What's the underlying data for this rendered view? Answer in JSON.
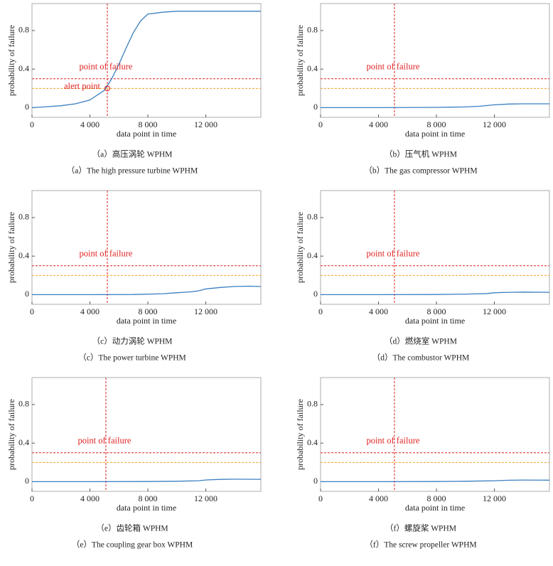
{
  "chart_data": [
    {
      "type": "line",
      "x_label": "data point in time",
      "y_label": "probability of failure",
      "caption_zh": "（a）高压涡轮 WPHM",
      "caption_en": "（a）The high pressure turbine WPHM",
      "x": [
        0,
        1000,
        2000,
        3000,
        4000,
        5000,
        5500,
        6000,
        6500,
        7000,
        7500,
        8000,
        9000,
        10000,
        12000,
        14000,
        15800
      ],
      "values": [
        0,
        0.01,
        0.02,
        0.04,
        0.08,
        0.18,
        0.3,
        0.45,
        0.62,
        0.78,
        0.9,
        0.97,
        0.99,
        1.0,
        1.0,
        1.0,
        1.0
      ],
      "color": "#3a7fc1",
      "failure_threshold": 0.3,
      "alert_threshold": 0.2,
      "failure_point": 5200,
      "failure_label": "point of failure",
      "alert_label": "alert point",
      "xlim": [
        0,
        15800
      ],
      "ylim": [
        -0.1,
        1.08
      ],
      "xticks": [
        0,
        {
          "value": 4000,
          "label": "4 000"
        },
        {
          "value": 8000,
          "label": "8 000"
        },
        {
          "value": 12000,
          "label": "12 000"
        }
      ],
      "yticks": [
        0,
        0.4,
        0.8
      ]
    },
    {
      "type": "line",
      "x_label": "data point in time",
      "y_label": "probability of failure",
      "caption_zh": "（b）压气机 WPHM",
      "caption_en": "（b）The gas compressor WPHM",
      "x": [
        0,
        4000,
        8000,
        10000,
        11000,
        12000,
        13000,
        14000,
        15800
      ],
      "values": [
        0,
        0,
        0.003,
        0.008,
        0.015,
        0.03,
        0.038,
        0.04,
        0.04
      ],
      "color": "#3a7fc1",
      "failure_threshold": 0.3,
      "alert_threshold": 0.2,
      "failure_point": 5100,
      "failure_label": "point of failure",
      "xlim": [
        0,
        15800
      ],
      "ylim": [
        -0.1,
        1.08
      ],
      "xticks": [
        0,
        {
          "value": 4000,
          "label": "4 000"
        },
        {
          "value": 8000,
          "label": "8 000"
        },
        {
          "value": 12000,
          "label": "12 000"
        }
      ],
      "yticks": [
        0,
        0.4,
        0.8
      ]
    },
    {
      "type": "line",
      "x_label": "data point in time",
      "y_label": "probability of failure",
      "caption_zh": "（c）动力涡轮 WPHM",
      "caption_en": "（c）The power turbine WPHM",
      "x": [
        0,
        4000,
        7000,
        9000,
        10000,
        11000,
        11500,
        12000,
        13000,
        14000,
        15000,
        15800
      ],
      "values": [
        0,
        0,
        0.002,
        0.01,
        0.02,
        0.03,
        0.04,
        0.06,
        0.075,
        0.085,
        0.088,
        0.085
      ],
      "color": "#3a7fc1",
      "failure_threshold": 0.3,
      "alert_threshold": 0.2,
      "failure_point": 5200,
      "failure_label": "point of failure",
      "xlim": [
        0,
        15800
      ],
      "ylim": [
        -0.1,
        1.08
      ],
      "xticks": [
        0,
        {
          "value": 4000,
          "label": "4 000"
        },
        {
          "value": 8000,
          "label": "8 000"
        },
        {
          "value": 12000,
          "label": "12 000"
        }
      ],
      "yticks": [
        0,
        0.4,
        0.8
      ]
    },
    {
      "type": "line",
      "x_label": "data point in time",
      "y_label": "probability of failure",
      "caption_zh": "（d）燃烧室 WPHM",
      "caption_en": "（d）The combustor WPHM",
      "x": [
        0,
        4000,
        8000,
        10000,
        11500,
        12000,
        13000,
        14000,
        15800
      ],
      "values": [
        0,
        0,
        0.002,
        0.006,
        0.012,
        0.02,
        0.025,
        0.027,
        0.025
      ],
      "color": "#3a7fc1",
      "failure_threshold": 0.3,
      "alert_threshold": 0.2,
      "failure_point": 5100,
      "failure_label": "point of failure",
      "xlim": [
        0,
        15800
      ],
      "ylim": [
        -0.1,
        1.08
      ],
      "xticks": [
        0,
        {
          "value": 4000,
          "label": "4 000"
        },
        {
          "value": 8000,
          "label": "8 000"
        },
        {
          "value": 12000,
          "label": "12 000"
        }
      ],
      "yticks": [
        0,
        0.4,
        0.8
      ]
    },
    {
      "type": "line",
      "x_label": "data point in time",
      "y_label": "probability of failure",
      "caption_zh": "（e）齿轮箱 WPHM",
      "caption_en": "（e）The coupling gear box WPHM",
      "x": [
        0,
        4000,
        8000,
        10000,
        11500,
        12000,
        13000,
        14000,
        15800
      ],
      "values": [
        0,
        0,
        0.002,
        0.005,
        0.01,
        0.018,
        0.024,
        0.026,
        0.025
      ],
      "color": "#3a7fc1",
      "failure_threshold": 0.3,
      "alert_threshold": 0.2,
      "failure_point": 5100,
      "failure_label": "point of failure",
      "xlim": [
        0,
        15800
      ],
      "ylim": [
        -0.1,
        1.08
      ],
      "xticks": [
        0,
        {
          "value": 4000,
          "label": "4 000"
        },
        {
          "value": 8000,
          "label": "8 000"
        },
        {
          "value": 12000,
          "label": "12 000"
        }
      ],
      "yticks": [
        0,
        0.4,
        0.8
      ]
    },
    {
      "type": "line",
      "x_label": "data point in time",
      "y_label": "probability of failure",
      "caption_zh": "（f）螺旋桨 WPHM",
      "caption_en": "（f）The screw propeller WPHM",
      "x": [
        0,
        4000,
        8000,
        10000,
        12000,
        13000,
        14000,
        15800
      ],
      "values": [
        0,
        0,
        0.002,
        0.005,
        0.01,
        0.015,
        0.017,
        0.016
      ],
      "color": "#3a7fc1",
      "failure_threshold": 0.3,
      "alert_threshold": 0.2,
      "failure_point": 5100,
      "failure_label": "point of failure",
      "xlim": [
        0,
        15800
      ],
      "ylim": [
        -0.1,
        1.08
      ],
      "xticks": [
        0,
        {
          "value": 4000,
          "label": "4 000"
        },
        {
          "value": 8000,
          "label": "8 000"
        },
        {
          "value": 12000,
          "label": "12 000"
        }
      ],
      "yticks": [
        0,
        0.4,
        0.8
      ]
    }
  ]
}
